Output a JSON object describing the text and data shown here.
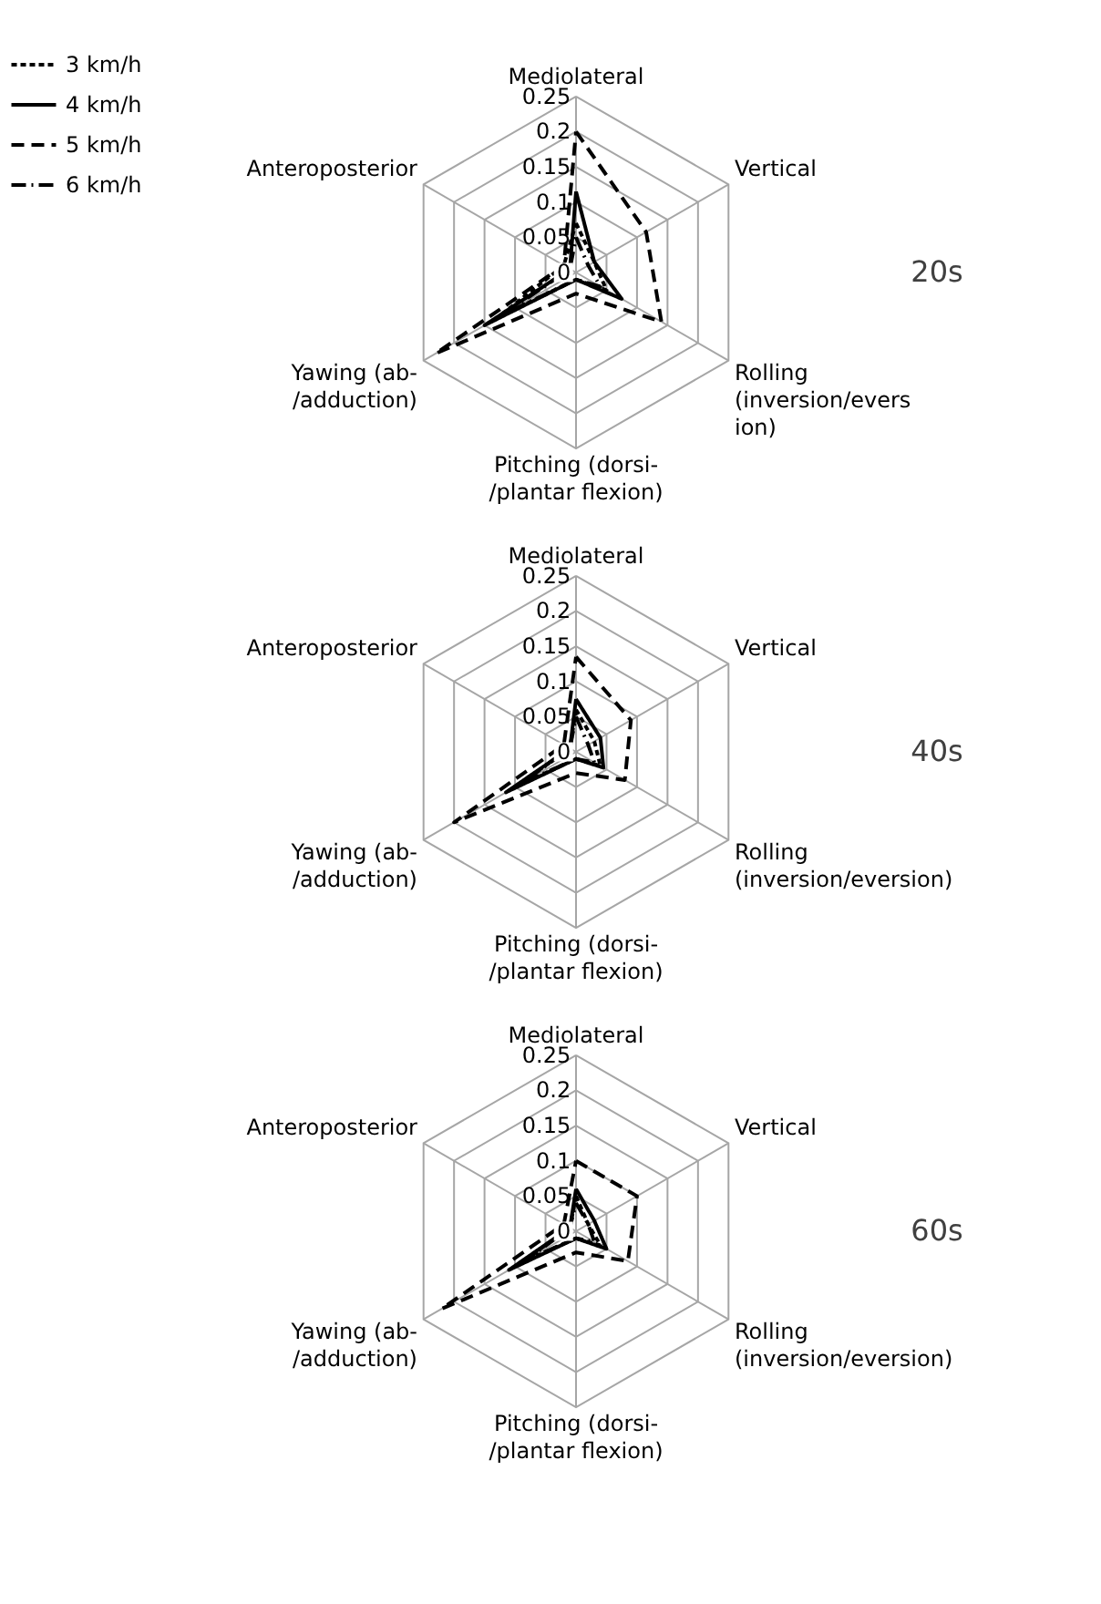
{
  "chart_data": [
    {
      "type": "radar",
      "title": "20s",
      "categories": [
        "Mediolateral",
        "Vertical",
        "Rolling\n(inversion/evers\nion)",
        "Pitching (dorsi-\n/plantar flexion)",
        "Yawing (ab-\n/adduction)",
        "Anteroposterior"
      ],
      "ylim": [
        0,
        0.25
      ],
      "yticks": [
        0,
        0.05,
        0.1,
        0.15,
        0.2,
        0.25
      ],
      "grid": true,
      "legend": "top left",
      "series": [
        {
          "name": "3 km/h",
          "color": "#000000",
          "line_style": "dotted",
          "values": [
            0.07,
            0.03,
            0.05,
            0.01,
            0.13,
            0.02
          ]
        },
        {
          "name": "4 km/h",
          "color": "#000000",
          "line_style": "solid",
          "values": [
            0.115,
            0.03,
            0.075,
            0.01,
            0.15,
            0.01
          ]
        },
        {
          "name": "5 km/h",
          "color": "#000000",
          "line_style": "dashed",
          "values": [
            0.2,
            0.115,
            0.14,
            0.03,
            0.23,
            0.02
          ]
        },
        {
          "name": "6 km/h",
          "color": "#000000",
          "line_style": "dashdot",
          "values": [
            0.05,
            0.02,
            0.04,
            0.01,
            0.12,
            0.01
          ]
        }
      ]
    },
    {
      "type": "radar",
      "title": "40s",
      "categories": [
        "Mediolateral",
        "Vertical",
        "Rolling\n(inversion/eversion)",
        "Pitching (dorsi-\n/plantar flexion)",
        "Yawing (ab-\n/adduction)",
        "Anteroposterior"
      ],
      "ylim": [
        0,
        0.25
      ],
      "yticks": [
        0,
        0.05,
        0.1,
        0.15,
        0.2,
        0.25
      ],
      "grid": true,
      "series": [
        {
          "color": "#000000",
          "line_style": "dotted",
          "values": [
            0.06,
            0.03,
            0.04,
            0.01,
            0.1,
            0.01
          ]
        },
        {
          "color": "#000000",
          "line_style": "solid",
          "values": [
            0.075,
            0.04,
            0.045,
            0.01,
            0.115,
            0.01
          ]
        },
        {
          "color": "#000000",
          "line_style": "dashed",
          "values": [
            0.135,
            0.09,
            0.08,
            0.03,
            0.2,
            0.02
          ]
        },
        {
          "color": "#000000",
          "line_style": "dashdot",
          "values": [
            0.05,
            0.02,
            0.03,
            0.01,
            0.09,
            0.01
          ]
        }
      ]
    },
    {
      "type": "radar",
      "title": "60s",
      "categories": [
        "Mediolateral",
        "Vertical",
        "Rolling\n(inversion/eversion)",
        "Pitching (dorsi-\n/plantar flexion)",
        "Yawing (ab-\n/adduction)",
        "Anteroposterior"
      ],
      "ylim": [
        0,
        0.25
      ],
      "yticks": [
        0,
        0.05,
        0.1,
        0.15,
        0.2,
        0.25
      ],
      "grid": true,
      "series": [
        {
          "color": "#000000",
          "line_style": "dotted",
          "values": [
            0.05,
            0.02,
            0.04,
            0.01,
            0.09,
            0.01
          ]
        },
        {
          "color": "#000000",
          "line_style": "solid",
          "values": [
            0.06,
            0.03,
            0.05,
            0.01,
            0.11,
            0.01
          ]
        },
        {
          "color": "#000000",
          "line_style": "dashed",
          "values": [
            0.1,
            0.1,
            0.085,
            0.03,
            0.22,
            0.02
          ]
        },
        {
          "color": "#000000",
          "line_style": "dashdot",
          "values": [
            0.04,
            0.02,
            0.03,
            0.01,
            0.08,
            0.01
          ]
        }
      ]
    }
  ]
}
